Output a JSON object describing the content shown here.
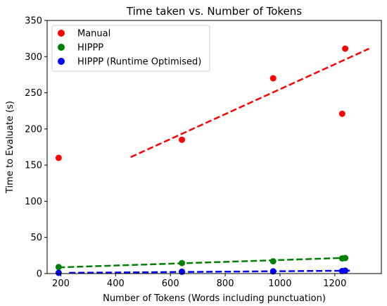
{
  "chart_data": {
    "type": "scatter",
    "title": "Time taken vs. Number of Tokens",
    "xlabel": "Number of Tokens (Words including punctuation)",
    "ylabel": "Time to Evaluate (s)",
    "xlim": [
      150,
      1370
    ],
    "ylim": [
      0,
      350
    ],
    "xticks": [
      200,
      400,
      600,
      800,
      1000,
      1200
    ],
    "yticks": [
      0,
      50,
      100,
      150,
      200,
      250,
      300,
      350
    ],
    "legend_position": "top-left",
    "series": [
      {
        "name": "Manual",
        "color": "#ff0000",
        "points": [
          {
            "x": 192,
            "y": 160
          },
          {
            "x": 642,
            "y": 185
          },
          {
            "x": 975,
            "y": 270
          },
          {
            "x": 1227,
            "y": 221
          },
          {
            "x": 1238,
            "y": 311
          }
        ],
        "trend": {
          "x": [
            455,
            1325
          ],
          "y": [
            161,
            311
          ]
        }
      },
      {
        "name": "HIPPP",
        "color": "#008000",
        "points": [
          {
            "x": 192,
            "y": 9
          },
          {
            "x": 642,
            "y": 14.5
          },
          {
            "x": 975,
            "y": 17
          },
          {
            "x": 1227,
            "y": 21
          },
          {
            "x": 1238,
            "y": 21.5
          }
        ],
        "trend": {
          "x": [
            192,
            1260
          ],
          "y": [
            8.5,
            22
          ]
        }
      },
      {
        "name": "HIPPP (Runtime Optimised)",
        "color": "#0000ff",
        "points": [
          {
            "x": 192,
            "y": 1
          },
          {
            "x": 642,
            "y": 2.5
          },
          {
            "x": 975,
            "y": 3
          },
          {
            "x": 1227,
            "y": 3.5
          },
          {
            "x": 1238,
            "y": 4
          }
        ],
        "trend": {
          "x": [
            230,
            1260
          ],
          "y": [
            1,
            4
          ]
        }
      }
    ]
  }
}
